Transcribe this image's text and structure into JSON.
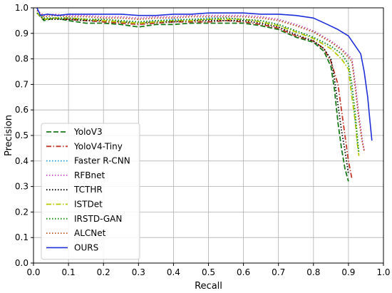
{
  "chart_data": {
    "type": "line",
    "title": "",
    "xlabel": "Recall",
    "ylabel": "Precision",
    "xlim": [
      0.0,
      1.0
    ],
    "ylim": [
      0.0,
      1.0
    ],
    "xticks": [
      "0.0",
      "0.1",
      "0.2",
      "0.3",
      "0.4",
      "0.5",
      "0.6",
      "0.7",
      "0.8",
      "0.9",
      "1.0"
    ],
    "yticks": [
      "0.0",
      "0.1",
      "0.2",
      "0.3",
      "0.4",
      "0.5",
      "0.6",
      "0.7",
      "0.8",
      "0.9",
      "1.0"
    ],
    "grid": true,
    "legend_position": "lower-left",
    "series": [
      {
        "name": "YoloV3",
        "color": "#1a7a1a",
        "style": "dashed",
        "points": [
          [
            0.01,
            0.98
          ],
          [
            0.03,
            0.95
          ],
          [
            0.06,
            0.96
          ],
          [
            0.1,
            0.95
          ],
          [
            0.15,
            0.94
          ],
          [
            0.2,
            0.94
          ],
          [
            0.25,
            0.935
          ],
          [
            0.3,
            0.925
          ],
          [
            0.35,
            0.935
          ],
          [
            0.4,
            0.935
          ],
          [
            0.45,
            0.94
          ],
          [
            0.5,
            0.94
          ],
          [
            0.55,
            0.94
          ],
          [
            0.6,
            0.94
          ],
          [
            0.65,
            0.93
          ],
          [
            0.7,
            0.915
          ],
          [
            0.75,
            0.885
          ],
          [
            0.8,
            0.865
          ],
          [
            0.83,
            0.83
          ],
          [
            0.85,
            0.77
          ],
          [
            0.86,
            0.68
          ],
          [
            0.87,
            0.55
          ],
          [
            0.88,
            0.45
          ],
          [
            0.89,
            0.37
          ],
          [
            0.9,
            0.32
          ]
        ]
      },
      {
        "name": "YoloV4-Tiny",
        "color": "#c0392b",
        "style": "dashdot",
        "points": [
          [
            0.01,
            0.98
          ],
          [
            0.03,
            0.955
          ],
          [
            0.06,
            0.96
          ],
          [
            0.1,
            0.955
          ],
          [
            0.15,
            0.95
          ],
          [
            0.2,
            0.945
          ],
          [
            0.25,
            0.94
          ],
          [
            0.3,
            0.935
          ],
          [
            0.35,
            0.94
          ],
          [
            0.4,
            0.945
          ],
          [
            0.45,
            0.945
          ],
          [
            0.5,
            0.945
          ],
          [
            0.55,
            0.95
          ],
          [
            0.6,
            0.945
          ],
          [
            0.65,
            0.935
          ],
          [
            0.7,
            0.92
          ],
          [
            0.75,
            0.89
          ],
          [
            0.8,
            0.87
          ],
          [
            0.83,
            0.84
          ],
          [
            0.85,
            0.79
          ],
          [
            0.87,
            0.7
          ],
          [
            0.88,
            0.6
          ],
          [
            0.89,
            0.5
          ],
          [
            0.9,
            0.4
          ],
          [
            0.91,
            0.33
          ]
        ]
      },
      {
        "name": "Faster R-CNN",
        "color": "#17a2d1",
        "style": "dotted",
        "points": [
          [
            0.01,
            0.98
          ],
          [
            0.03,
            0.96
          ],
          [
            0.06,
            0.96
          ],
          [
            0.1,
            0.96
          ],
          [
            0.15,
            0.955
          ],
          [
            0.2,
            0.955
          ],
          [
            0.25,
            0.95
          ],
          [
            0.3,
            0.945
          ],
          [
            0.35,
            0.95
          ],
          [
            0.4,
            0.955
          ],
          [
            0.45,
            0.955
          ],
          [
            0.5,
            0.96
          ],
          [
            0.55,
            0.96
          ],
          [
            0.6,
            0.955
          ],
          [
            0.65,
            0.95
          ],
          [
            0.7,
            0.935
          ],
          [
            0.75,
            0.91
          ],
          [
            0.8,
            0.885
          ],
          [
            0.85,
            0.85
          ],
          [
            0.88,
            0.82
          ],
          [
            0.9,
            0.78
          ],
          [
            0.91,
            0.68
          ],
          [
            0.92,
            0.55
          ],
          [
            0.925,
            0.48
          ],
          [
            0.93,
            0.43
          ]
        ]
      },
      {
        "name": "RFBnet",
        "color": "#c050c0",
        "style": "dotted",
        "points": [
          [
            0.01,
            0.99
          ],
          [
            0.03,
            0.97
          ],
          [
            0.06,
            0.975
          ],
          [
            0.1,
            0.97
          ],
          [
            0.15,
            0.97
          ],
          [
            0.2,
            0.965
          ],
          [
            0.25,
            0.965
          ],
          [
            0.3,
            0.96
          ],
          [
            0.35,
            0.965
          ],
          [
            0.4,
            0.965
          ],
          [
            0.45,
            0.97
          ],
          [
            0.5,
            0.97
          ],
          [
            0.55,
            0.97
          ],
          [
            0.6,
            0.97
          ],
          [
            0.65,
            0.965
          ],
          [
            0.7,
            0.955
          ],
          [
            0.75,
            0.935
          ],
          [
            0.8,
            0.91
          ],
          [
            0.85,
            0.87
          ],
          [
            0.88,
            0.84
          ],
          [
            0.91,
            0.8
          ],
          [
            0.92,
            0.7
          ],
          [
            0.93,
            0.58
          ],
          [
            0.94,
            0.48
          ],
          [
            0.945,
            0.44
          ]
        ]
      },
      {
        "name": "TCTHR",
        "color": "#000000",
        "style": "dotted",
        "points": [
          [
            0.01,
            0.98
          ],
          [
            0.03,
            0.955
          ],
          [
            0.06,
            0.955
          ],
          [
            0.1,
            0.955
          ],
          [
            0.15,
            0.95
          ],
          [
            0.2,
            0.95
          ],
          [
            0.25,
            0.945
          ],
          [
            0.3,
            0.94
          ],
          [
            0.35,
            0.945
          ],
          [
            0.4,
            0.945
          ],
          [
            0.45,
            0.95
          ],
          [
            0.5,
            0.95
          ],
          [
            0.55,
            0.95
          ],
          [
            0.6,
            0.95
          ],
          [
            0.65,
            0.94
          ],
          [
            0.7,
            0.925
          ],
          [
            0.75,
            0.895
          ],
          [
            0.8,
            0.87
          ],
          [
            0.83,
            0.84
          ],
          [
            0.85,
            0.8
          ],
          [
            0.86,
            0.72
          ],
          [
            0.87,
            0.62
          ],
          [
            0.88,
            0.52
          ],
          [
            0.89,
            0.44
          ],
          [
            0.9,
            0.35
          ]
        ]
      },
      {
        "name": "ISTDet",
        "color": "#b5c900",
        "style": "dashdot",
        "points": [
          [
            0.01,
            0.98
          ],
          [
            0.03,
            0.955
          ],
          [
            0.06,
            0.96
          ],
          [
            0.1,
            0.96
          ],
          [
            0.15,
            0.955
          ],
          [
            0.2,
            0.95
          ],
          [
            0.25,
            0.945
          ],
          [
            0.3,
            0.94
          ],
          [
            0.35,
            0.945
          ],
          [
            0.4,
            0.95
          ],
          [
            0.45,
            0.95
          ],
          [
            0.5,
            0.955
          ],
          [
            0.55,
            0.955
          ],
          [
            0.6,
            0.955
          ],
          [
            0.65,
            0.945
          ],
          [
            0.7,
            0.93
          ],
          [
            0.75,
            0.905
          ],
          [
            0.8,
            0.88
          ],
          [
            0.85,
            0.84
          ],
          [
            0.88,
            0.8
          ],
          [
            0.9,
            0.76
          ],
          [
            0.91,
            0.65
          ],
          [
            0.92,
            0.55
          ],
          [
            0.925,
            0.47
          ],
          [
            0.93,
            0.42
          ]
        ]
      },
      {
        "name": "IRSTD-GAN",
        "color": "#1e8a1e",
        "style": "dotted",
        "points": [
          [
            0.01,
            0.98
          ],
          [
            0.03,
            0.96
          ],
          [
            0.06,
            0.96
          ],
          [
            0.1,
            0.96
          ],
          [
            0.15,
            0.955
          ],
          [
            0.2,
            0.955
          ],
          [
            0.25,
            0.95
          ],
          [
            0.3,
            0.945
          ],
          [
            0.35,
            0.95
          ],
          [
            0.4,
            0.95
          ],
          [
            0.45,
            0.955
          ],
          [
            0.5,
            0.955
          ],
          [
            0.55,
            0.96
          ],
          [
            0.6,
            0.955
          ],
          [
            0.65,
            0.95
          ],
          [
            0.7,
            0.935
          ],
          [
            0.75,
            0.91
          ],
          [
            0.8,
            0.885
          ],
          [
            0.85,
            0.85
          ],
          [
            0.88,
            0.82
          ],
          [
            0.9,
            0.78
          ],
          [
            0.91,
            0.7
          ],
          [
            0.92,
            0.58
          ],
          [
            0.925,
            0.5
          ],
          [
            0.93,
            0.43
          ]
        ]
      },
      {
        "name": "ALCNet",
        "color": "#b5541e",
        "style": "dotted",
        "points": [
          [
            0.01,
            0.99
          ],
          [
            0.03,
            0.965
          ],
          [
            0.06,
            0.97
          ],
          [
            0.1,
            0.965
          ],
          [
            0.15,
            0.965
          ],
          [
            0.2,
            0.96
          ],
          [
            0.25,
            0.96
          ],
          [
            0.3,
            0.955
          ],
          [
            0.35,
            0.96
          ],
          [
            0.4,
            0.96
          ],
          [
            0.45,
            0.965
          ],
          [
            0.5,
            0.965
          ],
          [
            0.55,
            0.965
          ],
          [
            0.6,
            0.965
          ],
          [
            0.65,
            0.96
          ],
          [
            0.7,
            0.95
          ],
          [
            0.75,
            0.93
          ],
          [
            0.8,
            0.905
          ],
          [
            0.85,
            0.865
          ],
          [
            0.88,
            0.835
          ],
          [
            0.91,
            0.79
          ],
          [
            0.92,
            0.68
          ],
          [
            0.93,
            0.56
          ],
          [
            0.94,
            0.47
          ],
          [
            0.945,
            0.44
          ]
        ]
      },
      {
        "name": "OURS",
        "color": "#1f2fd6",
        "style": "solid",
        "points": [
          [
            0.01,
            1.0
          ],
          [
            0.02,
            0.97
          ],
          [
            0.04,
            0.975
          ],
          [
            0.07,
            0.97
          ],
          [
            0.1,
            0.975
          ],
          [
            0.15,
            0.975
          ],
          [
            0.2,
            0.975
          ],
          [
            0.25,
            0.975
          ],
          [
            0.3,
            0.97
          ],
          [
            0.35,
            0.97
          ],
          [
            0.4,
            0.975
          ],
          [
            0.45,
            0.975
          ],
          [
            0.5,
            0.98
          ],
          [
            0.55,
            0.98
          ],
          [
            0.6,
            0.98
          ],
          [
            0.65,
            0.975
          ],
          [
            0.7,
            0.975
          ],
          [
            0.75,
            0.97
          ],
          [
            0.8,
            0.96
          ],
          [
            0.84,
            0.935
          ],
          [
            0.87,
            0.915
          ],
          [
            0.9,
            0.89
          ],
          [
            0.92,
            0.85
          ],
          [
            0.935,
            0.82
          ],
          [
            0.945,
            0.75
          ],
          [
            0.955,
            0.65
          ],
          [
            0.962,
            0.55
          ],
          [
            0.967,
            0.48
          ]
        ]
      }
    ]
  }
}
